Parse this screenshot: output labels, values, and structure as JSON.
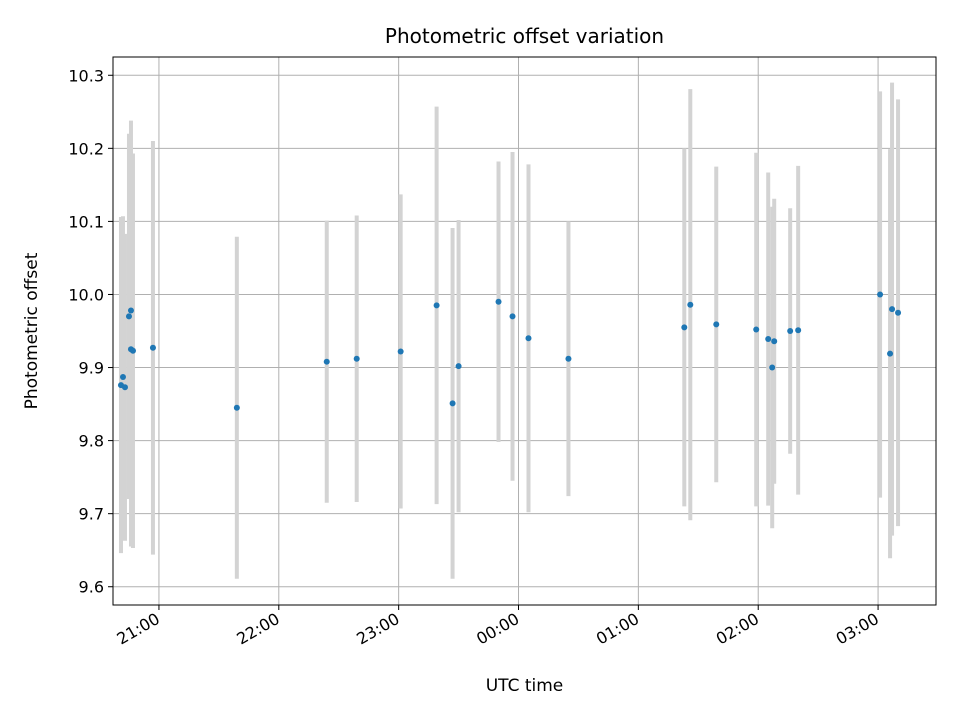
{
  "chart_data": {
    "type": "scatter",
    "title": "Photometric offset variation",
    "xlabel": "UTC time",
    "ylabel": "Photometric offset",
    "x_unit": "time (HH:MM), night spanning midnight",
    "xlim": [
      "20:37",
      "03:29"
    ],
    "ylim": [
      9.575,
      10.325
    ],
    "yticks": [
      "9.6",
      "9.7",
      "9.8",
      "9.9",
      "10.0",
      "10.1",
      "10.2",
      "10.3"
    ],
    "xticks": [
      "21:00",
      "22:00",
      "23:00",
      "00:00",
      "01:00",
      "02:00",
      "03:00"
    ],
    "grid": true,
    "point_color": "#1f77b4",
    "errorbar_color": "#d3d3d3",
    "points": [
      {
        "t": "20:41",
        "y": 9.876,
        "err": 0.23
      },
      {
        "t": "20:42",
        "y": 9.887,
        "err": 0.22
      },
      {
        "t": "20:43",
        "y": 9.873,
        "err": 0.21
      },
      {
        "t": "20:45",
        "y": 9.97,
        "err": 0.25
      },
      {
        "t": "20:46",
        "y": 9.978,
        "err": 0.26
      },
      {
        "t": "20:46",
        "y": 9.925,
        "err": 0.27
      },
      {
        "t": "20:47",
        "y": 9.923,
        "err": 0.27
      },
      {
        "t": "20:57",
        "y": 9.927,
        "err": 0.283
      },
      {
        "t": "21:39",
        "y": 9.845,
        "err": 0.234
      },
      {
        "t": "22:24",
        "y": 9.908,
        "err": 0.193
      },
      {
        "t": "22:39",
        "y": 9.912,
        "err": 0.196
      },
      {
        "t": "23:01",
        "y": 9.922,
        "err": 0.215
      },
      {
        "t": "23:19",
        "y": 9.985,
        "err": 0.272
      },
      {
        "t": "23:27",
        "y": 9.851,
        "err": 0.24
      },
      {
        "t": "23:30",
        "y": 9.902,
        "err": 0.2
      },
      {
        "t": "23:50",
        "y": 9.99,
        "err": 0.192
      },
      {
        "t": "23:57",
        "y": 9.97,
        "err": 0.225
      },
      {
        "t": "00:05",
        "y": 9.94,
        "err": 0.238
      },
      {
        "t": "00:25",
        "y": 9.912,
        "err": 0.188
      },
      {
        "t": "01:23",
        "y": 9.955,
        "err": 0.245
      },
      {
        "t": "01:26",
        "y": 9.986,
        "err": 0.295
      },
      {
        "t": "01:39",
        "y": 9.959,
        "err": 0.216
      },
      {
        "t": "01:59",
        "y": 9.952,
        "err": 0.242
      },
      {
        "t": "02:05",
        "y": 9.939,
        "err": 0.228
      },
      {
        "t": "02:07",
        "y": 9.9,
        "err": 0.22
      },
      {
        "t": "02:08",
        "y": 9.936,
        "err": 0.195
      },
      {
        "t": "02:16",
        "y": 9.95,
        "err": 0.168
      },
      {
        "t": "02:20",
        "y": 9.951,
        "err": 0.225
      },
      {
        "t": "03:01",
        "y": 10.0,
        "err": 0.278
      },
      {
        "t": "03:06",
        "y": 9.919,
        "err": 0.28
      },
      {
        "t": "03:07",
        "y": 9.98,
        "err": 0.31
      },
      {
        "t": "03:10",
        "y": 9.975,
        "err": 0.292
      }
    ]
  }
}
